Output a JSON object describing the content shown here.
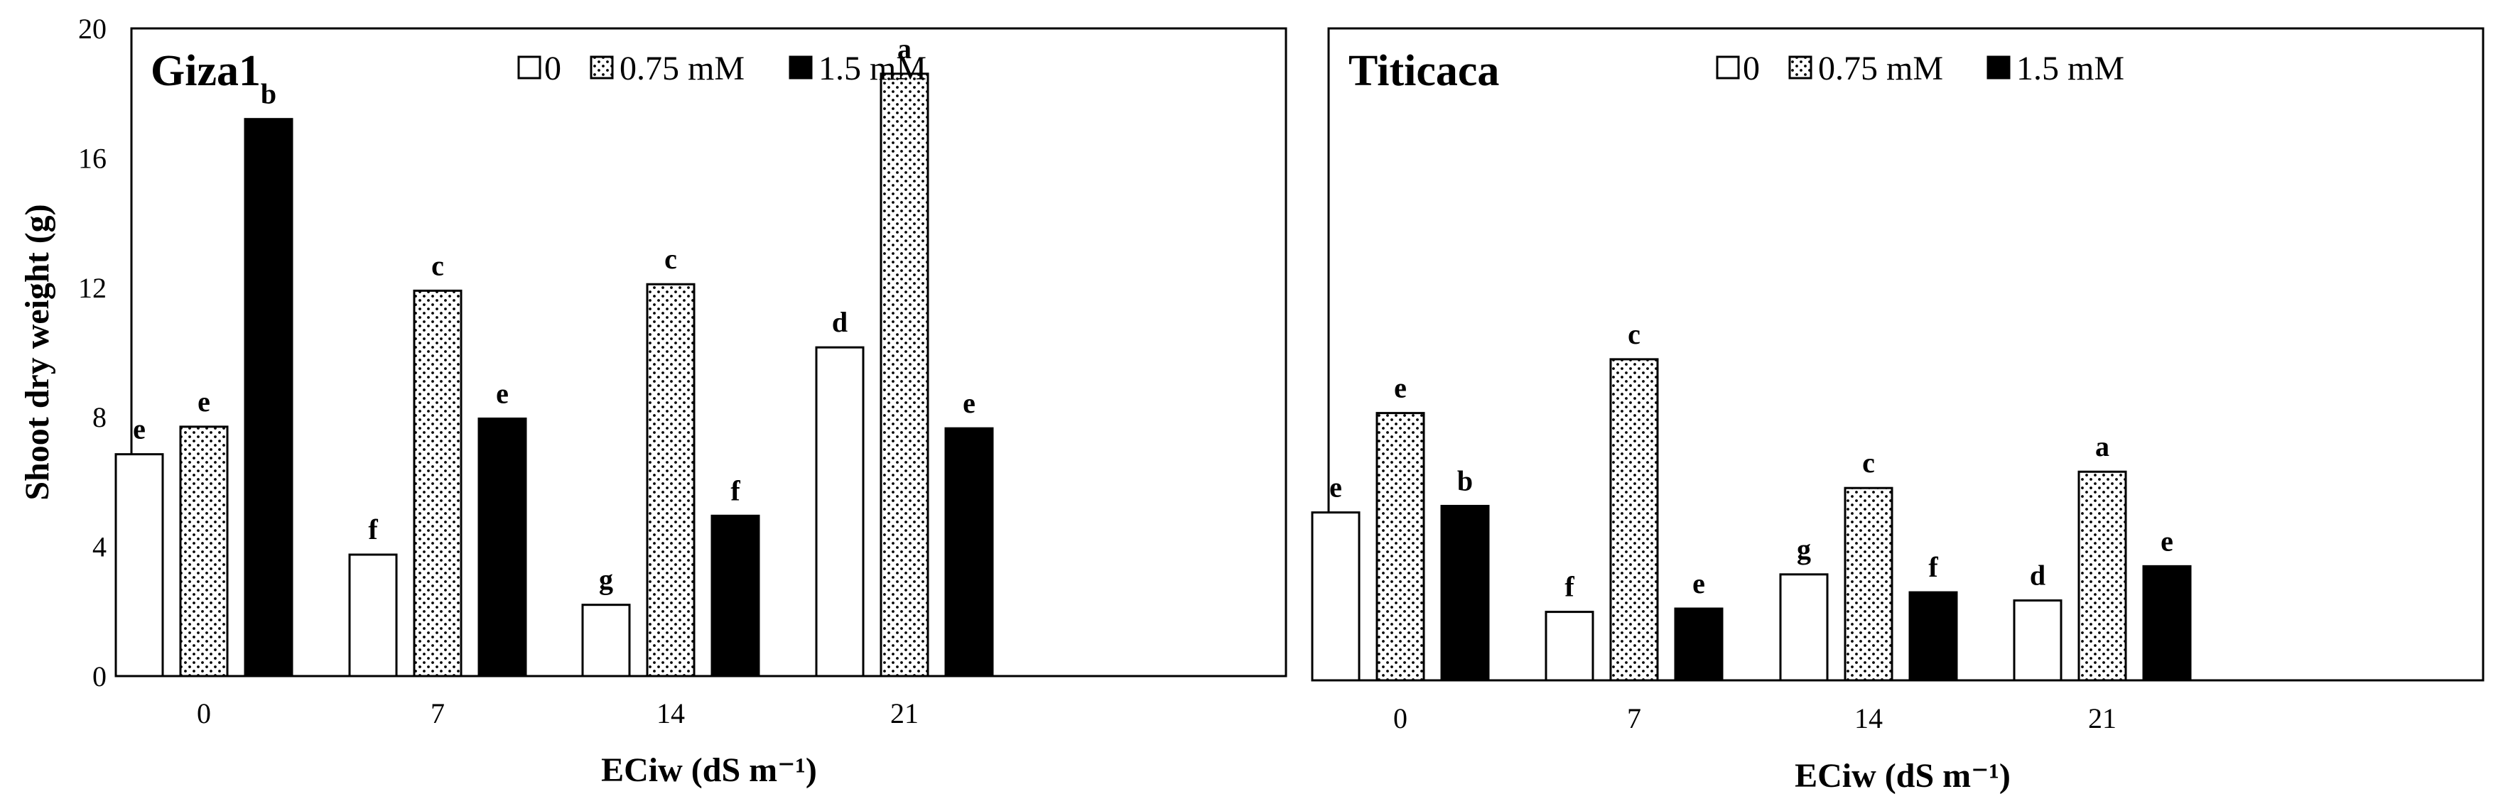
{
  "chart_data": [
    {
      "type": "bar",
      "title": "Giza1",
      "xlabel": "ECiw (dS m⁻¹)",
      "ylabel": "Shoot dry weight (g)",
      "ylim": [
        0,
        20
      ],
      "yticks": [
        0,
        4,
        8,
        12,
        16,
        20
      ],
      "categories": [
        "0",
        "7",
        "14",
        "21"
      ],
      "series": [
        {
          "name": "0",
          "values": [
            6.85,
            3.75,
            2.2,
            10.15
          ],
          "letters": [
            "e",
            "f",
            "g",
            "d"
          ]
        },
        {
          "name": "0.75 mM",
          "values": [
            7.7,
            11.9,
            12.1,
            18.6
          ],
          "letters": [
            "e",
            "c",
            "c",
            "a"
          ]
        },
        {
          "name": "1.5 mM",
          "values": [
            17.2,
            7.95,
            4.95,
            7.65
          ],
          "letters": [
            "b",
            "e",
            "f",
            "e"
          ]
        }
      ]
    },
    {
      "type": "bar",
      "title": "Titicaca",
      "xlabel": "ECiw (dS m⁻¹)",
      "ylabel": "",
      "ylim": [
        0,
        20
      ],
      "categories": [
        "0",
        "7",
        "14",
        "21"
      ],
      "series": [
        {
          "name": "0",
          "values": [
            5.15,
            2.1,
            3.25,
            2.45
          ],
          "letters": [
            "e",
            "f",
            "g",
            "d"
          ]
        },
        {
          "name": "0.75 mM",
          "values": [
            8.2,
            9.85,
            5.9,
            6.4
          ],
          "letters": [
            "e",
            "c",
            "c",
            "a"
          ]
        },
        {
          "name": "1.5 mM",
          "values": [
            5.35,
            2.2,
            2.7,
            3.5
          ],
          "letters": [
            "b",
            "e",
            "f",
            "e"
          ]
        }
      ]
    }
  ],
  "colors": {
    "series_0_fill": "#ffffff",
    "series_1_fill": "#ffffff",
    "series_1_dots": "#000000",
    "series_2_fill": "#000000",
    "frame": "#000000"
  }
}
